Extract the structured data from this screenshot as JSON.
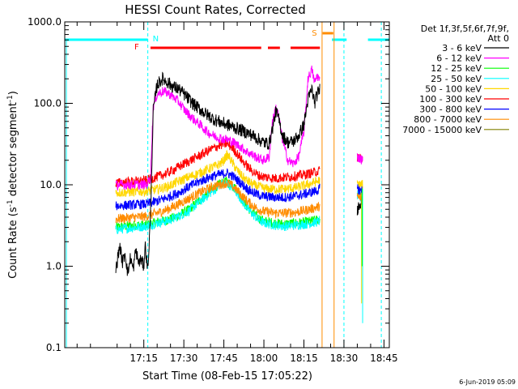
{
  "chart_data": {
    "type": "line",
    "title": "HESSI Count Rates, Corrected",
    "xlabel": "Start Time (08-Feb-15 17:05:22)",
    "ylabel_main": "Count Rate (s",
    "ylabel_sup1": "-1",
    "ylabel_mid": " detector segment",
    "ylabel_sup2": "-1",
    "ylabel_end": ")",
    "yscale": "log",
    "ylim": [
      0.1,
      1000
    ],
    "xlim_minutes": [
      1005.37,
      1127
    ],
    "x_ticks": [
      {
        "m": 1035,
        "label": "17:15"
      },
      {
        "m": 1050,
        "label": "17:30"
      },
      {
        "m": 1065,
        "label": "17:45"
      },
      {
        "m": 1080,
        "label": "18:00"
      },
      {
        "m": 1095,
        "label": "18:15"
      },
      {
        "m": 1110,
        "label": "18:30"
      },
      {
        "m": 1125,
        "label": "18:45"
      }
    ],
    "y_ticks": [
      {
        "v": 0.1,
        "label": "0.1"
      },
      {
        "v": 1,
        "label": "1.0"
      },
      {
        "v": 10,
        "label": "10.0"
      },
      {
        "v": 100,
        "label": "100.0"
      },
      {
        "v": 1000,
        "label": "1000.0"
      }
    ],
    "legend_title": [
      "Det 1f,3f,5f,6f,7f,9f,",
      "Att 0"
    ],
    "legend_placement": "right",
    "series": [
      {
        "name": "3 - 6 keV",
        "color": "#000000",
        "gap_points": [
          [
            1024.5,
            0.9
          ],
          [
            1026,
            1.8
          ],
          [
            1027,
            1.1
          ],
          [
            1028,
            1.5
          ],
          [
            1029,
            0.8
          ],
          [
            1030,
            1.3
          ],
          [
            1031,
            0.9
          ],
          [
            1032,
            1.6
          ],
          [
            1033,
            1.1
          ],
          [
            1034,
            1.2
          ],
          [
            1035,
            1.0
          ],
          [
            1035.5,
            1.8
          ],
          [
            1036.5,
            0.9
          ],
          [
            1037.5,
            4.0
          ],
          [
            1038.5,
            80
          ],
          [
            1040,
            170
          ],
          [
            1042,
            200
          ],
          [
            1044,
            180
          ],
          [
            1046,
            160
          ],
          [
            1048,
            150
          ],
          [
            1050,
            130
          ],
          [
            1052,
            110
          ],
          [
            1054,
            95
          ],
          [
            1056,
            85
          ],
          [
            1058,
            75
          ],
          [
            1060,
            68
          ],
          [
            1062,
            62
          ],
          [
            1064,
            58
          ],
          [
            1066,
            55
          ],
          [
            1068,
            52
          ],
          [
            1070,
            49
          ],
          [
            1072,
            46
          ],
          [
            1074,
            43
          ],
          [
            1076,
            40
          ],
          [
            1078,
            36
          ],
          [
            1080,
            33
          ],
          [
            1082,
            32
          ],
          [
            1083,
            45
          ],
          [
            1084.5,
            80
          ],
          [
            1085.5,
            65
          ],
          [
            1087,
            40
          ],
          [
            1089,
            33
          ],
          [
            1091,
            34
          ],
          [
            1093,
            40
          ],
          [
            1095,
            55
          ],
          [
            1096.5,
            110
          ],
          [
            1098,
            150
          ],
          [
            1099,
            100
          ],
          [
            1100,
            130
          ],
          [
            1101,
            150
          ]
        ],
        "post_points": [
          [
            1115,
            5
          ],
          [
            1116,
            6
          ],
          [
            1117,
            6.5
          ]
        ]
      },
      {
        "name": "6 - 12 keV",
        "color": "#ff00ff",
        "gap_points": [
          [
            1024.5,
            10
          ],
          [
            1028,
            10
          ],
          [
            1032,
            10
          ],
          [
            1036,
            10
          ],
          [
            1037.5,
            12
          ],
          [
            1038.5,
            90
          ],
          [
            1040,
            130
          ],
          [
            1042,
            140
          ],
          [
            1044,
            135
          ],
          [
            1046,
            120
          ],
          [
            1048,
            105
          ],
          [
            1050,
            85
          ],
          [
            1052,
            72
          ],
          [
            1054,
            62
          ],
          [
            1056,
            55
          ],
          [
            1058,
            47
          ],
          [
            1060,
            42
          ],
          [
            1062,
            39
          ],
          [
            1064,
            37
          ],
          [
            1066,
            36
          ],
          [
            1068,
            34
          ],
          [
            1070,
            31
          ],
          [
            1072,
            28
          ],
          [
            1074,
            25
          ],
          [
            1076,
            23
          ],
          [
            1078,
            21
          ],
          [
            1080,
            20
          ],
          [
            1082,
            22
          ],
          [
            1083,
            55
          ],
          [
            1084.5,
            90
          ],
          [
            1085.5,
            70
          ],
          [
            1087,
            35
          ],
          [
            1089,
            20
          ],
          [
            1091,
            18
          ],
          [
            1093,
            22
          ],
          [
            1095,
            45
          ],
          [
            1096.5,
            200
          ],
          [
            1098,
            260
          ],
          [
            1099,
            180
          ],
          [
            1100,
            220
          ],
          [
            1101,
            190
          ]
        ],
        "post_points": [
          [
            1115,
            22
          ],
          [
            1116,
            21
          ],
          [
            1117,
            20
          ]
        ]
      },
      {
        "name": "12 - 25 keV",
        "color": "#00ff00",
        "gap_points": [
          [
            1024.5,
            3
          ],
          [
            1028,
            3.1
          ],
          [
            1032,
            3.2
          ],
          [
            1036,
            3.2
          ],
          [
            1040,
            3.5
          ],
          [
            1044,
            3.7
          ],
          [
            1048,
            4.2
          ],
          [
            1052,
            5
          ],
          [
            1056,
            6.5
          ],
          [
            1060,
            8.5
          ],
          [
            1064,
            10.5
          ],
          [
            1066,
            11
          ],
          [
            1068,
            10
          ],
          [
            1070,
            8.5
          ],
          [
            1072,
            6.5
          ],
          [
            1074,
            5.2
          ],
          [
            1076,
            4.5
          ],
          [
            1078,
            3.9
          ],
          [
            1080,
            3.6
          ],
          [
            1084,
            3.4
          ],
          [
            1088,
            3.3
          ],
          [
            1092,
            3.4
          ],
          [
            1096,
            3.5
          ],
          [
            1100,
            3.7
          ],
          [
            1101,
            3.8
          ]
        ],
        "post_points": [
          [
            1115,
            8
          ],
          [
            1116,
            7.5
          ],
          [
            1117,
            7.5
          ]
        ]
      },
      {
        "name": "25 - 50 keV",
        "color": "#00ffff",
        "gap_points": [
          [
            1024.5,
            2.8
          ],
          [
            1028,
            2.9
          ],
          [
            1032,
            3
          ],
          [
            1036,
            3.1
          ],
          [
            1040,
            3.4
          ],
          [
            1044,
            3.6
          ],
          [
            1048,
            4.1
          ],
          [
            1052,
            4.8
          ],
          [
            1056,
            6.2
          ],
          [
            1060,
            8
          ],
          [
            1064,
            10
          ],
          [
            1066,
            10.5
          ],
          [
            1068,
            9.5
          ],
          [
            1070,
            8
          ],
          [
            1072,
            6.2
          ],
          [
            1074,
            5
          ],
          [
            1076,
            4.3
          ],
          [
            1078,
            3.7
          ],
          [
            1080,
            3.4
          ],
          [
            1084,
            3.2
          ],
          [
            1088,
            3.1
          ],
          [
            1092,
            3.2
          ],
          [
            1096,
            3.3
          ],
          [
            1100,
            3.5
          ],
          [
            1101,
            3.6
          ]
        ],
        "post_points": [
          [
            1115,
            7.5
          ],
          [
            1116,
            7
          ],
          [
            1117,
            7
          ]
        ]
      },
      {
        "name": "50 - 100 keV",
        "color": "#ffd700",
        "gap_points": [
          [
            1024.5,
            8
          ],
          [
            1028,
            8.1
          ],
          [
            1032,
            8.2
          ],
          [
            1036,
            8.3
          ],
          [
            1040,
            8.8
          ],
          [
            1044,
            9.5
          ],
          [
            1048,
            11
          ],
          [
            1052,
            12.5
          ],
          [
            1056,
            14
          ],
          [
            1060,
            16
          ],
          [
            1062,
            17
          ],
          [
            1064,
            18.5
          ],
          [
            1065,
            20
          ],
          [
            1066,
            23
          ],
          [
            1067,
            22
          ],
          [
            1068,
            19
          ],
          [
            1070,
            15
          ],
          [
            1072,
            12.5
          ],
          [
            1074,
            11
          ],
          [
            1076,
            10
          ],
          [
            1078,
            9.5
          ],
          [
            1080,
            9
          ],
          [
            1084,
            8.8
          ],
          [
            1088,
            8.9
          ],
          [
            1092,
            9.2
          ],
          [
            1096,
            10
          ],
          [
            1100,
            11
          ],
          [
            1101,
            11.5
          ]
        ],
        "post_points": [
          [
            1115,
            10
          ],
          [
            1116,
            10
          ],
          [
            1117,
            10
          ]
        ]
      },
      {
        "name": "100 - 300 keV",
        "color": "#ff0000",
        "gap_points": [
          [
            1024.5,
            10.5
          ],
          [
            1028,
            10.8
          ],
          [
            1032,
            11
          ],
          [
            1036,
            11.3
          ],
          [
            1040,
            12.5
          ],
          [
            1044,
            14
          ],
          [
            1048,
            16.5
          ],
          [
            1052,
            19.5
          ],
          [
            1056,
            23
          ],
          [
            1060,
            27
          ],
          [
            1064,
            31
          ],
          [
            1066,
            32
          ],
          [
            1068,
            29
          ],
          [
            1070,
            24
          ],
          [
            1072,
            19.5
          ],
          [
            1074,
            16.5
          ],
          [
            1076,
            14.5
          ],
          [
            1078,
            13
          ],
          [
            1080,
            12.5
          ],
          [
            1084,
            12
          ],
          [
            1088,
            12.3
          ],
          [
            1092,
            12.8
          ],
          [
            1096,
            13.5
          ],
          [
            1100,
            14.5
          ],
          [
            1101,
            15
          ]
        ],
        "post_points": [
          [
            1115,
            22
          ],
          [
            1116,
            22
          ],
          [
            1117,
            21
          ]
        ]
      },
      {
        "name": "300 - 800 keV",
        "color": "#0000ff",
        "gap_points": [
          [
            1024.5,
            5.5
          ],
          [
            1028,
            5.6
          ],
          [
            1032,
            5.7
          ],
          [
            1036,
            5.8
          ],
          [
            1040,
            6.3
          ],
          [
            1044,
            7
          ],
          [
            1048,
            8
          ],
          [
            1052,
            9.5
          ],
          [
            1056,
            11
          ],
          [
            1060,
            12.5
          ],
          [
            1064,
            13.5
          ],
          [
            1066,
            14
          ],
          [
            1068,
            13
          ],
          [
            1070,
            11.5
          ],
          [
            1072,
            10
          ],
          [
            1074,
            8.8
          ],
          [
            1076,
            8
          ],
          [
            1078,
            7.5
          ],
          [
            1080,
            7.2
          ],
          [
            1084,
            7
          ],
          [
            1088,
            7
          ],
          [
            1092,
            7.3
          ],
          [
            1096,
            7.8
          ],
          [
            1100,
            8.5
          ],
          [
            1101,
            9
          ]
        ],
        "post_points": [
          [
            1115,
            9
          ],
          [
            1116,
            8.5
          ],
          [
            1117,
            8.5
          ]
        ]
      },
      {
        "name": "800 - 7000 keV",
        "color": "#ff8c00",
        "gap_points": [
          [
            1024.5,
            3.8
          ],
          [
            1028,
            3.9
          ],
          [
            1032,
            4
          ],
          [
            1036,
            4.1
          ],
          [
            1040,
            4.5
          ],
          [
            1044,
            5
          ],
          [
            1048,
            5.8
          ],
          [
            1052,
            6.8
          ],
          [
            1056,
            8
          ],
          [
            1060,
            9.2
          ],
          [
            1064,
            10.2
          ],
          [
            1066,
            10.5
          ],
          [
            1068,
            9.8
          ],
          [
            1070,
            8.5
          ],
          [
            1072,
            7.2
          ],
          [
            1074,
            6.2
          ],
          [
            1076,
            5.5
          ],
          [
            1078,
            5
          ],
          [
            1080,
            4.7
          ],
          [
            1084,
            4.5
          ],
          [
            1088,
            4.5
          ],
          [
            1092,
            4.6
          ],
          [
            1096,
            4.9
          ],
          [
            1100,
            5.3
          ],
          [
            1101,
            5.5
          ]
        ],
        "post_points": [
          [
            1115,
            7
          ],
          [
            1116,
            7
          ],
          [
            1117,
            7
          ]
        ]
      },
      {
        "name": "7000 - 15000 keV",
        "color": "#808000",
        "gap_points": [],
        "post_points": []
      }
    ],
    "annotations": [
      {
        "text": "N",
        "m": 1036.5,
        "color": "#00ffff"
      },
      {
        "text": "F",
        "m": 1034.5,
        "color": "#ff0000"
      },
      {
        "text": "S",
        "m": 1101,
        "color": "#ff8c00"
      }
    ],
    "timestamp": "6-Jun-2019 05:09"
  }
}
